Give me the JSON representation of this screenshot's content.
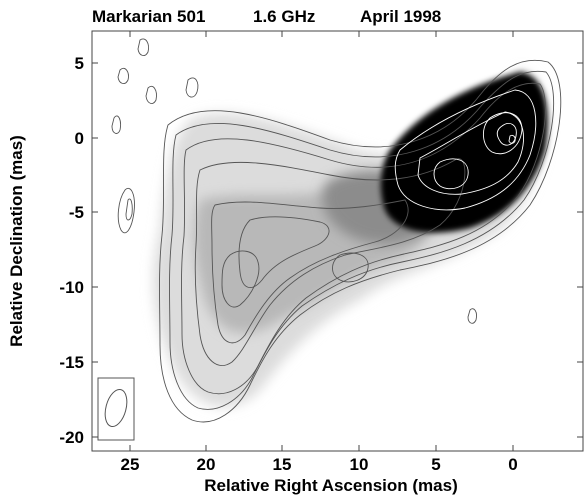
{
  "title": {
    "source": "Markarian 501",
    "frequency": "1.6 GHz",
    "date": "April 1998"
  },
  "axes": {
    "xlabel": "Relative Right Ascension (mas)",
    "ylabel": "Relative Declination (mas)",
    "x_ticks": [
      "25",
      "20",
      "15",
      "10",
      "5",
      "0"
    ],
    "y_ticks": [
      "5",
      "0",
      "-5",
      "-10",
      "-15",
      "-20"
    ]
  },
  "image": {
    "type": "radio map contour plot with greyscale",
    "x_range_mas": [
      28.5,
      -4.5
    ],
    "y_range_mas": [
      -21,
      7
    ],
    "colors": {
      "core": "#000000",
      "jet_mid": "#6a6a6a",
      "jet_faint": "#d4d4d4",
      "contour": "#555555",
      "inner_contour": "#ffffff"
    }
  },
  "beam": {
    "shape": "ellipse",
    "icon": "beam-ellipse-icon"
  }
}
